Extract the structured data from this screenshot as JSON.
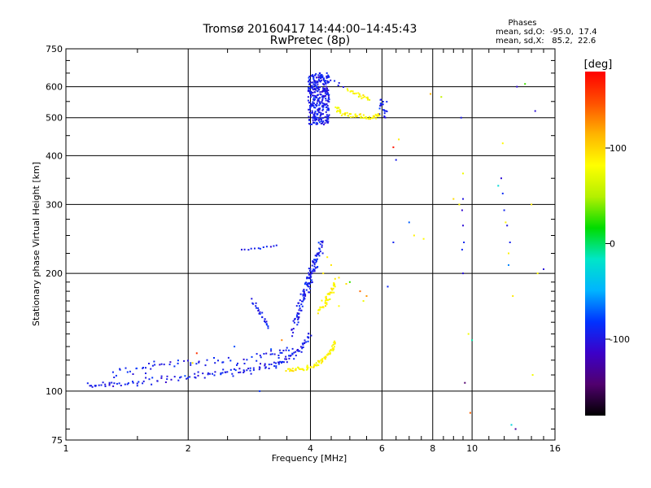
{
  "chart_data": {
    "type": "scatter",
    "title": "Tromsø 20160417 14:44:00–14:45:43",
    "subtitle": "RwPretec (8p)",
    "xlabel": "Frequency [MHz]",
    "ylabel": "Stationary phase Virtual Height [km]",
    "x_scale": "log",
    "y_scale": "log",
    "xlim": [
      1,
      16
    ],
    "ylim": [
      75,
      750
    ],
    "x_ticks": [
      1,
      2,
      4,
      6,
      8,
      10,
      16
    ],
    "x_minor_ticks": [
      1.5,
      2.5,
      3,
      3.5,
      4.5,
      5,
      5.5,
      6.5,
      7,
      7.5,
      8.5,
      9,
      9.5,
      11,
      12,
      13,
      14,
      15
    ],
    "y_ticks": [
      75,
      100,
      200,
      300,
      400,
      500,
      600,
      750
    ],
    "y_minor_ticks": [
      80,
      90,
      110,
      120,
      130,
      140,
      150,
      160,
      170,
      180,
      190,
      225,
      250,
      275,
      350,
      450,
      550,
      650,
      700
    ],
    "grid": true,
    "annotation": {
      "heading": "Phases",
      "line1": "mean, sd,O:  -95.0,  17.4",
      "line2": "mean, sd,X:   85.2,  22.6"
    },
    "colorbar": {
      "label": "[deg]",
      "range": [
        -180,
        180
      ],
      "ticks": [
        -100,
        0,
        100
      ],
      "colors": [
        "#000000",
        "#50006e",
        "#3c00c8",
        "#0032ff",
        "#00b4ff",
        "#00e6c8",
        "#00dc00",
        "#b4f000",
        "#ffff00",
        "#ffb400",
        "#ff5000",
        "#ff0000"
      ]
    },
    "series": [
      {
        "description": "O-mode traces (phase near -95 deg)",
        "phase": -95,
        "segments": [
          {
            "type": "curve",
            "x": [
              1.13,
              1.3,
              1.6,
              2.0,
              2.4,
              2.8,
              3.2,
              3.5,
              3.8,
              4.0
            ],
            "y": [
              103,
              104,
              106,
              109,
              111,
              113,
              116,
              120,
              128,
              140
            ],
            "n": 150,
            "jitter_x": 0.02,
            "jitter_y": 0.03
          },
          {
            "type": "curve",
            "x": [
              1.3,
              1.5,
              1.7,
              2.0,
              2.4,
              2.9,
              3.3,
              3.6
            ],
            "y": [
              110,
              114,
              117,
              118,
              119,
              121,
              124,
              127
            ],
            "n": 70,
            "jitter_x": 0.03,
            "jitter_y": 0.04
          },
          {
            "type": "curve",
            "x": [
              3.6,
              3.8,
              3.95,
              4.05,
              4.15,
              4.25
            ],
            "y": [
              140,
              165,
              185,
              200,
              220,
              240
            ],
            "n": 90,
            "jitter_x": 0.025,
            "jitter_y": 0.05
          },
          {
            "type": "curve",
            "x": [
              3.7,
              3.85,
              3.95,
              4.05
            ],
            "y": [
              150,
              175,
              195,
              215
            ],
            "n": 40,
            "jitter_x": 0.02,
            "jitter_y": 0.04
          },
          {
            "type": "cluster",
            "x": [
              3.95,
              4.45
            ],
            "y": [
              480,
              650
            ],
            "n": 320
          },
          {
            "type": "curve",
            "x": [
              3.0,
              3.1,
              3.15
            ],
            "y": [
              160,
              152,
              145
            ],
            "n": 14,
            "jitter_x": 0.01,
            "jitter_y": 0.02
          },
          {
            "type": "curve",
            "x": [
              2.85,
              2.95,
              3.0
            ],
            "y": [
              170,
              165,
              158
            ],
            "n": 10,
            "jitter_x": 0.01,
            "jitter_y": 0.02
          },
          {
            "type": "curve",
            "x": [
              2.7,
              3.0,
              3.3
            ],
            "y": [
              230,
              232,
              236
            ],
            "n": 12,
            "jitter_x": 0.01,
            "jitter_y": 0.01
          },
          {
            "type": "curve",
            "x": [
              4.1,
              4.4,
              4.8
            ],
            "y": [
              640,
              625,
              605
            ],
            "n": 12,
            "jitter_x": 0.02,
            "jitter_y": 0.02
          },
          {
            "type": "cluster",
            "x": [
              5.9,
              6.2
            ],
            "y": [
              500,
              560
            ],
            "n": 22
          },
          {
            "type": "points",
            "x": [
              9.4,
              9.5,
              9.45,
              9.5,
              9.55,
              9.45,
              9.5,
              11.8,
              11.9,
              12.0,
              12.2,
              12.4,
              6.4,
              6.2,
              12.9,
              14.3
            ],
            "y": [
              500,
              310,
              290,
              265,
              240,
              230,
              200,
              350,
              320,
              290,
              265,
              240,
              240,
              185,
              600,
              520
            ]
          }
        ]
      },
      {
        "description": "X-mode traces (phase near 85 deg)",
        "phase": 85,
        "segments": [
          {
            "type": "curve",
            "x": [
              3.5,
              3.8,
              4.1,
              4.3,
              4.5,
              4.6
            ],
            "y": [
              113,
              114,
              116,
              120,
              126,
              134
            ],
            "n": 80,
            "jitter_x": 0.015,
            "jitter_y": 0.02
          },
          {
            "type": "curve",
            "x": [
              4.2,
              4.35,
              4.5,
              4.6
            ],
            "y": [
              160,
              170,
              178,
              190
            ],
            "n": 45,
            "jitter_x": 0.02,
            "jitter_y": 0.03
          },
          {
            "type": "curve",
            "x": [
              4.6,
              4.9,
              5.3,
              5.7,
              5.9
            ],
            "y": [
              530,
              510,
              505,
              500,
              510
            ],
            "n": 60,
            "jitter_x": 0.02,
            "jitter_y": 0.02
          },
          {
            "type": "curve",
            "x": [
              4.9,
              5.3,
              5.6
            ],
            "y": [
              590,
              570,
              560
            ],
            "n": 22,
            "jitter_x": 0.02,
            "jitter_y": 0.02
          },
          {
            "type": "points",
            "x": [
              4.3,
              4.5,
              4.7,
              4.9,
              5.4,
              4.7,
              4.4,
              6.6,
              7.2,
              7.6,
              9.5,
              9.3,
              9.8,
              11.9,
              12.1,
              12.3,
              12.6,
              14.0,
              14.5,
              14.1
            ],
            "y": [
              200,
              210,
              195,
              188,
              170,
              165,
              220,
              440,
              250,
              245,
              360,
              300,
              140,
              430,
              270,
              225,
              175,
              300,
              200,
              110
            ]
          }
        ]
      },
      {
        "description": "Scattered points of mixed phase",
        "phase": null,
        "segments": [
          {
            "type": "points",
            "x": [
              2.05,
              2.1,
              2.6,
              3.0,
              3.2,
              3.4,
              5.0,
              5.3,
              5.5,
              6.4,
              6.5,
              7.0,
              7.9,
              8.4,
              9.0,
              9.6,
              9.9,
              10.0,
              11.6,
              12.3,
              12.5,
              12.8,
              13.5,
              15.0
            ],
            "y": [
              118,
              125,
              130,
              100,
              128,
              135,
              190,
              180,
              175,
              420,
              390,
              270,
              575,
              565,
              310,
              105,
              88,
              135,
              335,
              210,
              82,
              80,
              610,
              205
            ]
          }
        ]
      }
    ]
  }
}
